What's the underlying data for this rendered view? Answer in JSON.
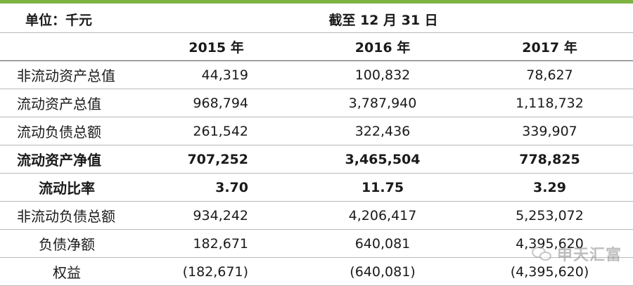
{
  "header": {
    "unit": "单位：千元",
    "period": "截至 12 月 31 日",
    "years": [
      "2015 年",
      "2016 年",
      "2017 年"
    ]
  },
  "rows": [
    {
      "label": "非流动资产总值",
      "values": [
        "44,319",
        "100,832",
        "78,627"
      ]
    },
    {
      "label": "流动资产总值",
      "values": [
        "968,794",
        "3,787,940",
        "1,118,732"
      ]
    },
    {
      "label": "流动负债总额",
      "values": [
        "261,542",
        "322,436",
        "339,907"
      ]
    },
    {
      "label": "流动资产净值",
      "values": [
        "707,252",
        "3,465,504",
        "778,825"
      ]
    },
    {
      "label": "流动比率",
      "values": [
        "3.70",
        "11.75",
        "3.29"
      ]
    },
    {
      "label": "非流动负债总额",
      "values": [
        "934,242",
        "4,206,417",
        "5,253,072"
      ]
    },
    {
      "label": "负债净额",
      "values": [
        "182,671",
        "640,081",
        "4,395,620"
      ]
    },
    {
      "label": "权益",
      "values": [
        "(182,671)",
        "(640,081)",
        "(4,395,620)"
      ]
    }
  ],
  "watermark": {
    "text": "申天汇富",
    "icon": "wechat-icon"
  },
  "colors": {
    "top_bar": "#7cb342"
  }
}
